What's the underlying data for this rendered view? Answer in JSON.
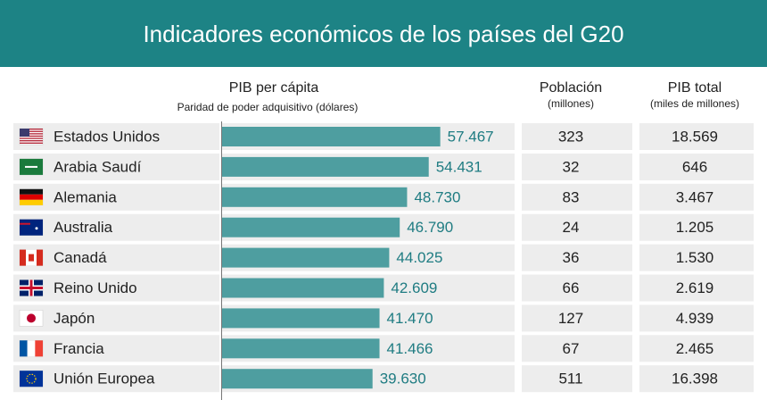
{
  "chart_data": {
    "type": "bar",
    "orientation": "horizontal",
    "title": "Indicadores económicos de los países del G20",
    "value_header": "PIB per cápita",
    "value_subheader": "Paridad de poder adquisitivo (dólares)",
    "categories": [
      "Estados Unidos",
      "Arabia Saudí",
      "Alemania",
      "Australia",
      "Canadá",
      "Reino Unido",
      "Japón",
      "Francia",
      "Unión Europea"
    ],
    "values": [
      57467,
      54431,
      48730,
      46790,
      44025,
      42609,
      41470,
      41466,
      39630
    ],
    "value_labels": [
      "57.467",
      "54.431",
      "48.730",
      "46.790",
      "44.025",
      "42.609",
      "41.470",
      "41.466",
      "39.630"
    ],
    "color": "#4e9ea0",
    "label_color": "#1f7c82",
    "xlim": [
      0,
      70000
    ],
    "population": {
      "title": "Población",
      "subtitle": "(millones)",
      "values": [
        323,
        32,
        83,
        24,
        36,
        66,
        127,
        67,
        511
      ]
    },
    "gdp_total": {
      "title": "PIB total",
      "subtitle": "(miles de millones)",
      "values": [
        "18.569",
        "646",
        "3.467",
        "1.205",
        "1.530",
        "2.619",
        "4.939",
        "2.465",
        "16.398"
      ]
    }
  }
}
